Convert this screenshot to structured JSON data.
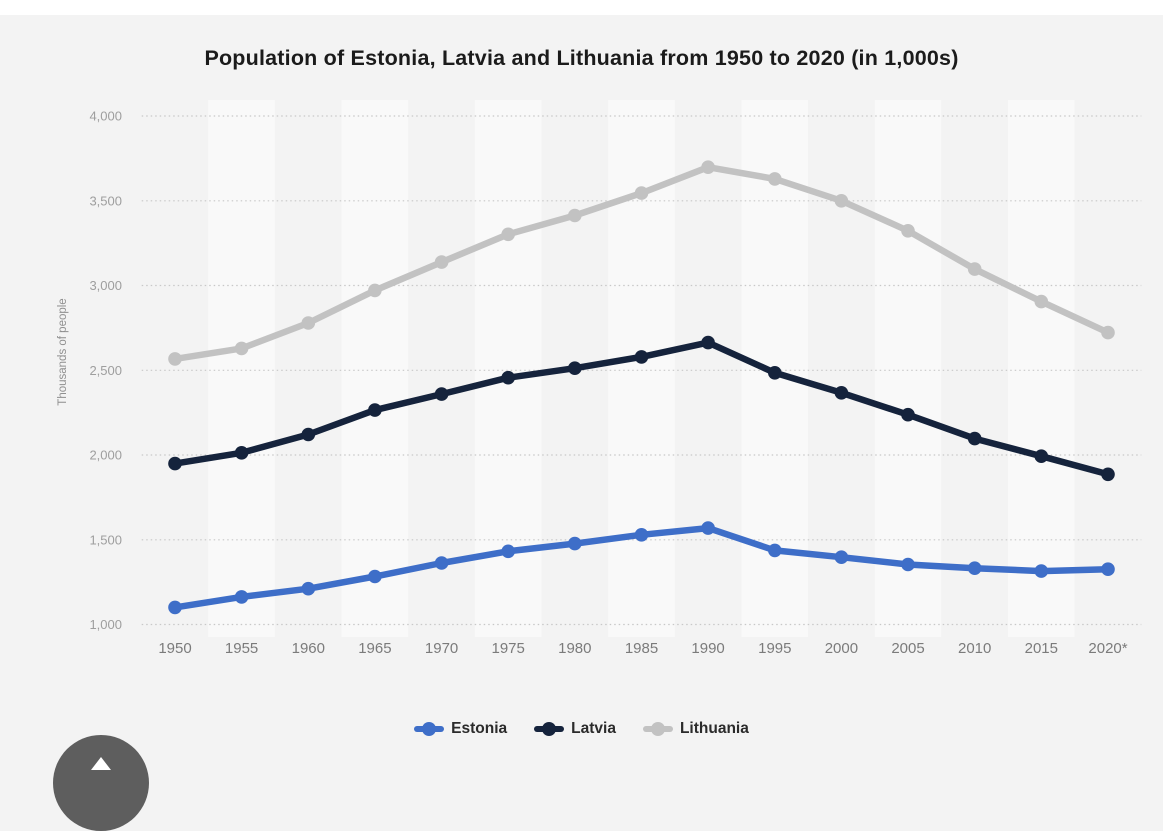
{
  "title": "Population of Estonia, Latvia and Lithuania from 1950 to 2020 (in 1,000s)",
  "y_axis": {
    "title": "Thousands of people",
    "tick_labels": [
      "4,000",
      "3,500",
      "3,000",
      "2,500",
      "2,000",
      "1,500",
      "1,000"
    ],
    "tick_values": [
      4000,
      3500,
      3000,
      2500,
      2000,
      1500,
      1000
    ]
  },
  "x_axis": {
    "tick_labels": [
      "1950",
      "1955",
      "1960",
      "1965",
      "1970",
      "1975",
      "1980",
      "1985",
      "1990",
      "1995",
      "2000",
      "2005",
      "2010",
      "2015",
      "2020*"
    ]
  },
  "legend": {
    "items": [
      "Estonia",
      "Latvia",
      "Lithuania"
    ],
    "position": "bottom"
  },
  "fab": {
    "icon": "arrow-up-icon",
    "background": "#5E5E5E"
  },
  "colors": {
    "background": "#F3F3F3",
    "top_strip": "#FFFFFF",
    "column_band": "#F9F9F9",
    "gridline": "#C8C8C8",
    "y_tick_label": "#9E9E9E",
    "x_tick_label": "#7B7B7B",
    "axis_title": "#8F8F8F",
    "title_text": "#1B1B1B",
    "legend_text": "#2B2B2B",
    "estonia": "#3E6EC8",
    "latvia": "#15233C",
    "lithuania": "#C2C2C2"
  },
  "chart_data": {
    "type": "line",
    "title": "Population of Estonia, Latvia and Lithuania from 1950 to 2020 (in 1,000s)",
    "categories": [
      "1950",
      "1955",
      "1960",
      "1965",
      "1970",
      "1975",
      "1980",
      "1985",
      "1990",
      "1995",
      "2000",
      "2005",
      "2010",
      "2015",
      "2020*"
    ],
    "series": [
      {
        "name": "Estonia",
        "color": "#3E6EC8",
        "values": [
          1101,
          1163,
          1211,
          1283,
          1363,
          1432,
          1477,
          1529,
          1569,
          1437,
          1397,
          1354,
          1332,
          1315,
          1326
        ]
      },
      {
        "name": "Latvia",
        "color": "#15233C",
        "values": [
          1949,
          2013,
          2121,
          2265,
          2359,
          2456,
          2512,
          2579,
          2663,
          2485,
          2367,
          2238,
          2097,
          1993,
          1886
        ]
      },
      {
        "name": "Lithuania",
        "color": "#C2C2C2",
        "values": [
          2567,
          2629,
          2779,
          2971,
          3138,
          3302,
          3413,
          3545,
          3698,
          3629,
          3500,
          3323,
          3097,
          2905,
          2722
        ]
      }
    ],
    "xlabel": "",
    "ylabel": "Thousands of people",
    "ylim": [
      1000,
      4000
    ],
    "yticks": [
      1000,
      1500,
      2000,
      2500,
      3000,
      3500,
      4000
    ],
    "grid": "horizontal-dotted",
    "legend_position": "bottom",
    "note": "2020 value marked with asterisk"
  }
}
